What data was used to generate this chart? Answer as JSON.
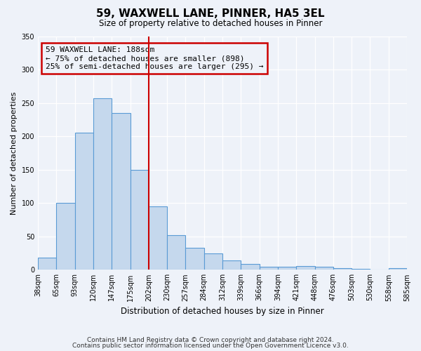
{
  "title": "59, WAXWELL LANE, PINNER, HA5 3EL",
  "subtitle": "Size of property relative to detached houses in Pinner",
  "xlabel": "Distribution of detached houses by size in Pinner",
  "ylabel": "Number of detached properties",
  "bar_values": [
    18,
    100,
    205,
    257,
    235,
    150,
    95,
    52,
    33,
    25,
    14,
    9,
    5,
    5,
    6,
    5,
    2,
    1,
    0,
    2
  ],
  "bin_labels": [
    "38sqm",
    "65sqm",
    "93sqm",
    "120sqm",
    "147sqm",
    "175sqm",
    "202sqm",
    "230sqm",
    "257sqm",
    "284sqm",
    "312sqm",
    "339sqm",
    "366sqm",
    "394sqm",
    "421sqm",
    "448sqm",
    "476sqm",
    "503sqm",
    "530sqm",
    "558sqm",
    "585sqm"
  ],
  "bar_color": "#c5d8ed",
  "bar_edge_color": "#5a9bd5",
  "vline_color": "#cc0000",
  "annotation_title": "59 WAXWELL LANE: 188sqm",
  "annotation_line1": "← 75% of detached houses are smaller (898)",
  "annotation_line2": "25% of semi-detached houses are larger (295) →",
  "annotation_box_color": "#cc0000",
  "ylim": [
    0,
    350
  ],
  "footer1": "Contains HM Land Registry data © Crown copyright and database right 2024.",
  "footer2": "Contains public sector information licensed under the Open Government Licence v3.0.",
  "bg_color": "#eef2f9"
}
